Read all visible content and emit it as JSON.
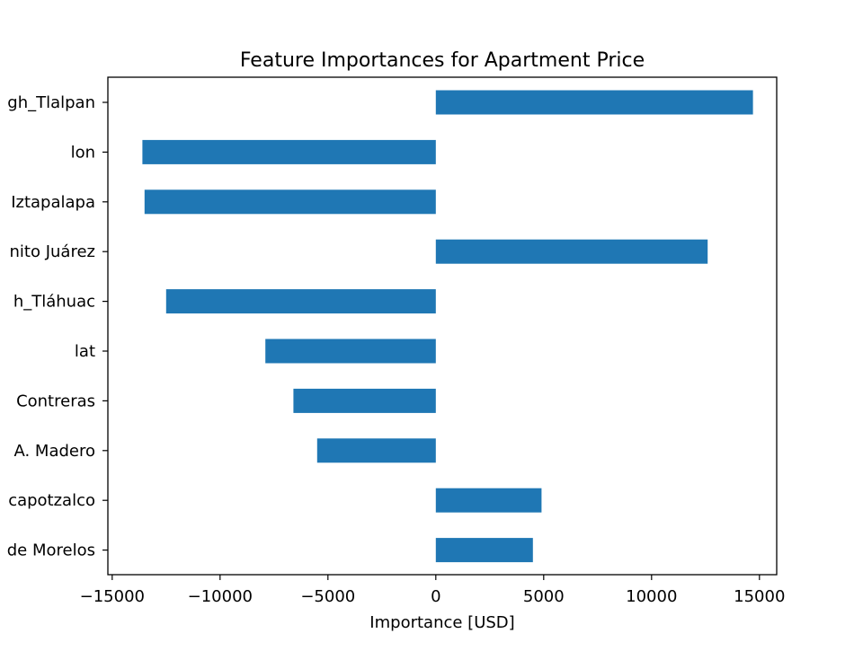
{
  "chart_data": {
    "type": "bar",
    "orientation": "horizontal",
    "title": "Feature Importances for Apartment Price",
    "xlabel": "Importance [USD]",
    "ylabel": "",
    "xlim": [
      -15200,
      15800
    ],
    "xticks": [
      -15000,
      -10000,
      -5000,
      0,
      5000,
      10000,
      15000
    ],
    "xtick_labels": [
      "−15000",
      "−10000",
      "−5000",
      "0",
      "5000",
      "10000",
      "15000"
    ],
    "categories": [
      "gh_Tlalpan",
      "lon",
      "Iztapalapa",
      "nito Juárez",
      "h_Tláhuac",
      "lat",
      "Contreras",
      "A. Madero",
      "capotzalco",
      "de Morelos"
    ],
    "values": [
      14700,
      -13600,
      -13500,
      12600,
      -12500,
      -7900,
      -6600,
      -5500,
      4900,
      4500
    ],
    "bar_color": "#1f77b4",
    "grid": false
  }
}
